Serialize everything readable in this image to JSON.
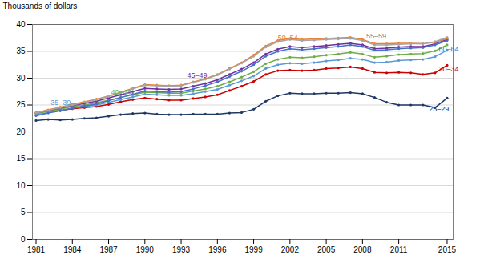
{
  "chart_data": {
    "type": "line",
    "y_label": "Thousands of dollars",
    "x": [
      1981,
      1982,
      1983,
      1984,
      1985,
      1986,
      1987,
      1988,
      1989,
      1990,
      1991,
      1992,
      1993,
      1994,
      1995,
      1996,
      1997,
      1998,
      1999,
      2000,
      2001,
      2002,
      2003,
      2004,
      2005,
      2006,
      2007,
      2008,
      2009,
      2010,
      2011,
      2012,
      2013,
      2014,
      2015
    ],
    "series": [
      {
        "name": "25–29",
        "color": "#1f3864",
        "values": [
          22.1,
          22.3,
          22.2,
          22.3,
          22.5,
          22.6,
          22.9,
          23.2,
          23.4,
          23.5,
          23.3,
          23.2,
          23.2,
          23.3,
          23.3,
          23.3,
          23.5,
          23.6,
          24.2,
          25.7,
          26.7,
          27.2,
          27.1,
          27.1,
          27.2,
          27.2,
          27.3,
          27.1,
          26.4,
          25.5,
          25.0,
          25.0,
          25.0,
          24.5,
          26.3
        ]
      },
      {
        "name": "30–34",
        "color": "#cc0000",
        "values": [
          23.5,
          23.9,
          24.0,
          24.3,
          24.5,
          24.7,
          25.1,
          25.6,
          26.0,
          26.3,
          26.1,
          25.9,
          25.9,
          26.2,
          26.5,
          26.9,
          27.7,
          28.5,
          29.4,
          30.7,
          31.4,
          31.5,
          31.4,
          31.5,
          31.8,
          31.9,
          32.1,
          31.8,
          31.1,
          31.0,
          31.1,
          31.0,
          30.7,
          31.0,
          32.4
        ]
      },
      {
        "name": "35–39",
        "color": "#5b9bd5",
        "values": [
          23.2,
          23.6,
          24.0,
          24.4,
          24.7,
          25.0,
          25.5,
          26.0,
          26.5,
          27.0,
          26.9,
          26.8,
          26.8,
          27.1,
          27.5,
          27.9,
          28.7,
          29.5,
          30.4,
          31.8,
          32.5,
          32.8,
          32.7,
          32.9,
          33.2,
          33.4,
          33.7,
          33.5,
          32.9,
          33.0,
          33.3,
          33.4,
          33.5,
          34.0,
          35.2
        ]
      },
      {
        "name": "40–44",
        "color": "#70ad47",
        "values": [
          23.4,
          23.8,
          24.2,
          24.7,
          25.0,
          25.4,
          25.9,
          26.4,
          26.9,
          27.4,
          27.3,
          27.2,
          27.2,
          27.6,
          28.0,
          28.5,
          29.3,
          30.2,
          31.2,
          32.7,
          33.5,
          33.9,
          33.8,
          34.0,
          34.3,
          34.5,
          34.8,
          34.5,
          33.9,
          34.1,
          34.4,
          34.5,
          34.6,
          35.1,
          36.2
        ]
      },
      {
        "name": "45–49",
        "color": "#7030a0",
        "values": [
          23.5,
          24.0,
          24.4,
          24.9,
          25.3,
          25.7,
          26.3,
          26.9,
          27.5,
          28.1,
          28.0,
          27.9,
          28.0,
          28.5,
          29.0,
          29.7,
          30.7,
          31.7,
          32.9,
          34.5,
          35.4,
          35.9,
          35.7,
          35.9,
          36.1,
          36.3,
          36.5,
          36.2,
          35.5,
          35.6,
          35.8,
          35.9,
          35.9,
          36.4,
          37.2
        ]
      },
      {
        "name": "50–54",
        "color": "#ed7d31",
        "values": [
          23.6,
          24.1,
          24.6,
          25.1,
          25.6,
          26.1,
          26.7,
          27.4,
          28.1,
          28.8,
          28.7,
          28.6,
          28.7,
          29.3,
          29.9,
          30.7,
          31.8,
          32.9,
          34.3,
          36.0,
          37.0,
          37.4,
          37.2,
          37.3,
          37.4,
          37.5,
          37.6,
          37.2,
          36.4,
          36.4,
          36.5,
          36.5,
          36.4,
          36.7,
          37.4
        ]
      },
      {
        "name": "55–59",
        "color": "#a5a5a5",
        "values": [
          23.5,
          24.0,
          24.5,
          25.0,
          25.5,
          26.0,
          26.6,
          27.3,
          28.0,
          28.7,
          28.6,
          28.5,
          28.6,
          29.2,
          29.8,
          30.6,
          31.7,
          32.8,
          34.1,
          35.8,
          36.8,
          37.2,
          37.0,
          37.1,
          37.2,
          37.3,
          37.4,
          37.0,
          36.2,
          36.2,
          36.3,
          36.4,
          36.4,
          36.8,
          37.6
        ]
      },
      {
        "name": "60–64",
        "color": "#4472c4",
        "values": [
          23.0,
          23.5,
          23.9,
          24.4,
          24.8,
          25.2,
          25.8,
          26.4,
          27.0,
          27.6,
          27.5,
          27.4,
          27.5,
          28.0,
          28.6,
          29.3,
          30.3,
          31.3,
          32.5,
          34.1,
          35.0,
          35.5,
          35.3,
          35.5,
          35.7,
          35.9,
          36.2,
          35.9,
          35.2,
          35.3,
          35.5,
          35.6,
          35.7,
          36.2,
          37.0
        ]
      }
    ],
    "annotations": [
      {
        "text": "25–29",
        "x": 2013.5,
        "y": 24.3,
        "color": "#1f3864"
      },
      {
        "text": "30–34",
        "x": 2014.3,
        "y": 31.7,
        "color": "#cc0000"
      },
      {
        "text": "35–39",
        "x": 1982.2,
        "y": 25.5,
        "color": "#5b9bd5"
      },
      {
        "text": "40–44",
        "x": 1987.2,
        "y": 27.4,
        "color": "#70ad47"
      },
      {
        "text": "45–49",
        "x": 1993.5,
        "y": 30.5,
        "color": "#7030a0"
      },
      {
        "text": "50–54",
        "x": 2001.0,
        "y": 37.5,
        "color": "#ed7d31"
      },
      {
        "text": "55–59",
        "x": 2008.3,
        "y": 37.8,
        "color": "#808080"
      },
      {
        "text": "60–64",
        "x": 2014.3,
        "y": 35.5,
        "color": "#4472c4"
      }
    ],
    "marker": "circle",
    "xlim": [
      1980.7,
      2015.5
    ],
    "xticks": [
      1981,
      1984,
      1987,
      1990,
      1993,
      1996,
      1999,
      2002,
      2005,
      2008,
      2011,
      2015
    ],
    "ylim": [
      0,
      40
    ],
    "yticks": [
      0,
      5,
      10,
      15,
      20,
      25,
      30,
      35,
      40
    ],
    "grid": true
  }
}
